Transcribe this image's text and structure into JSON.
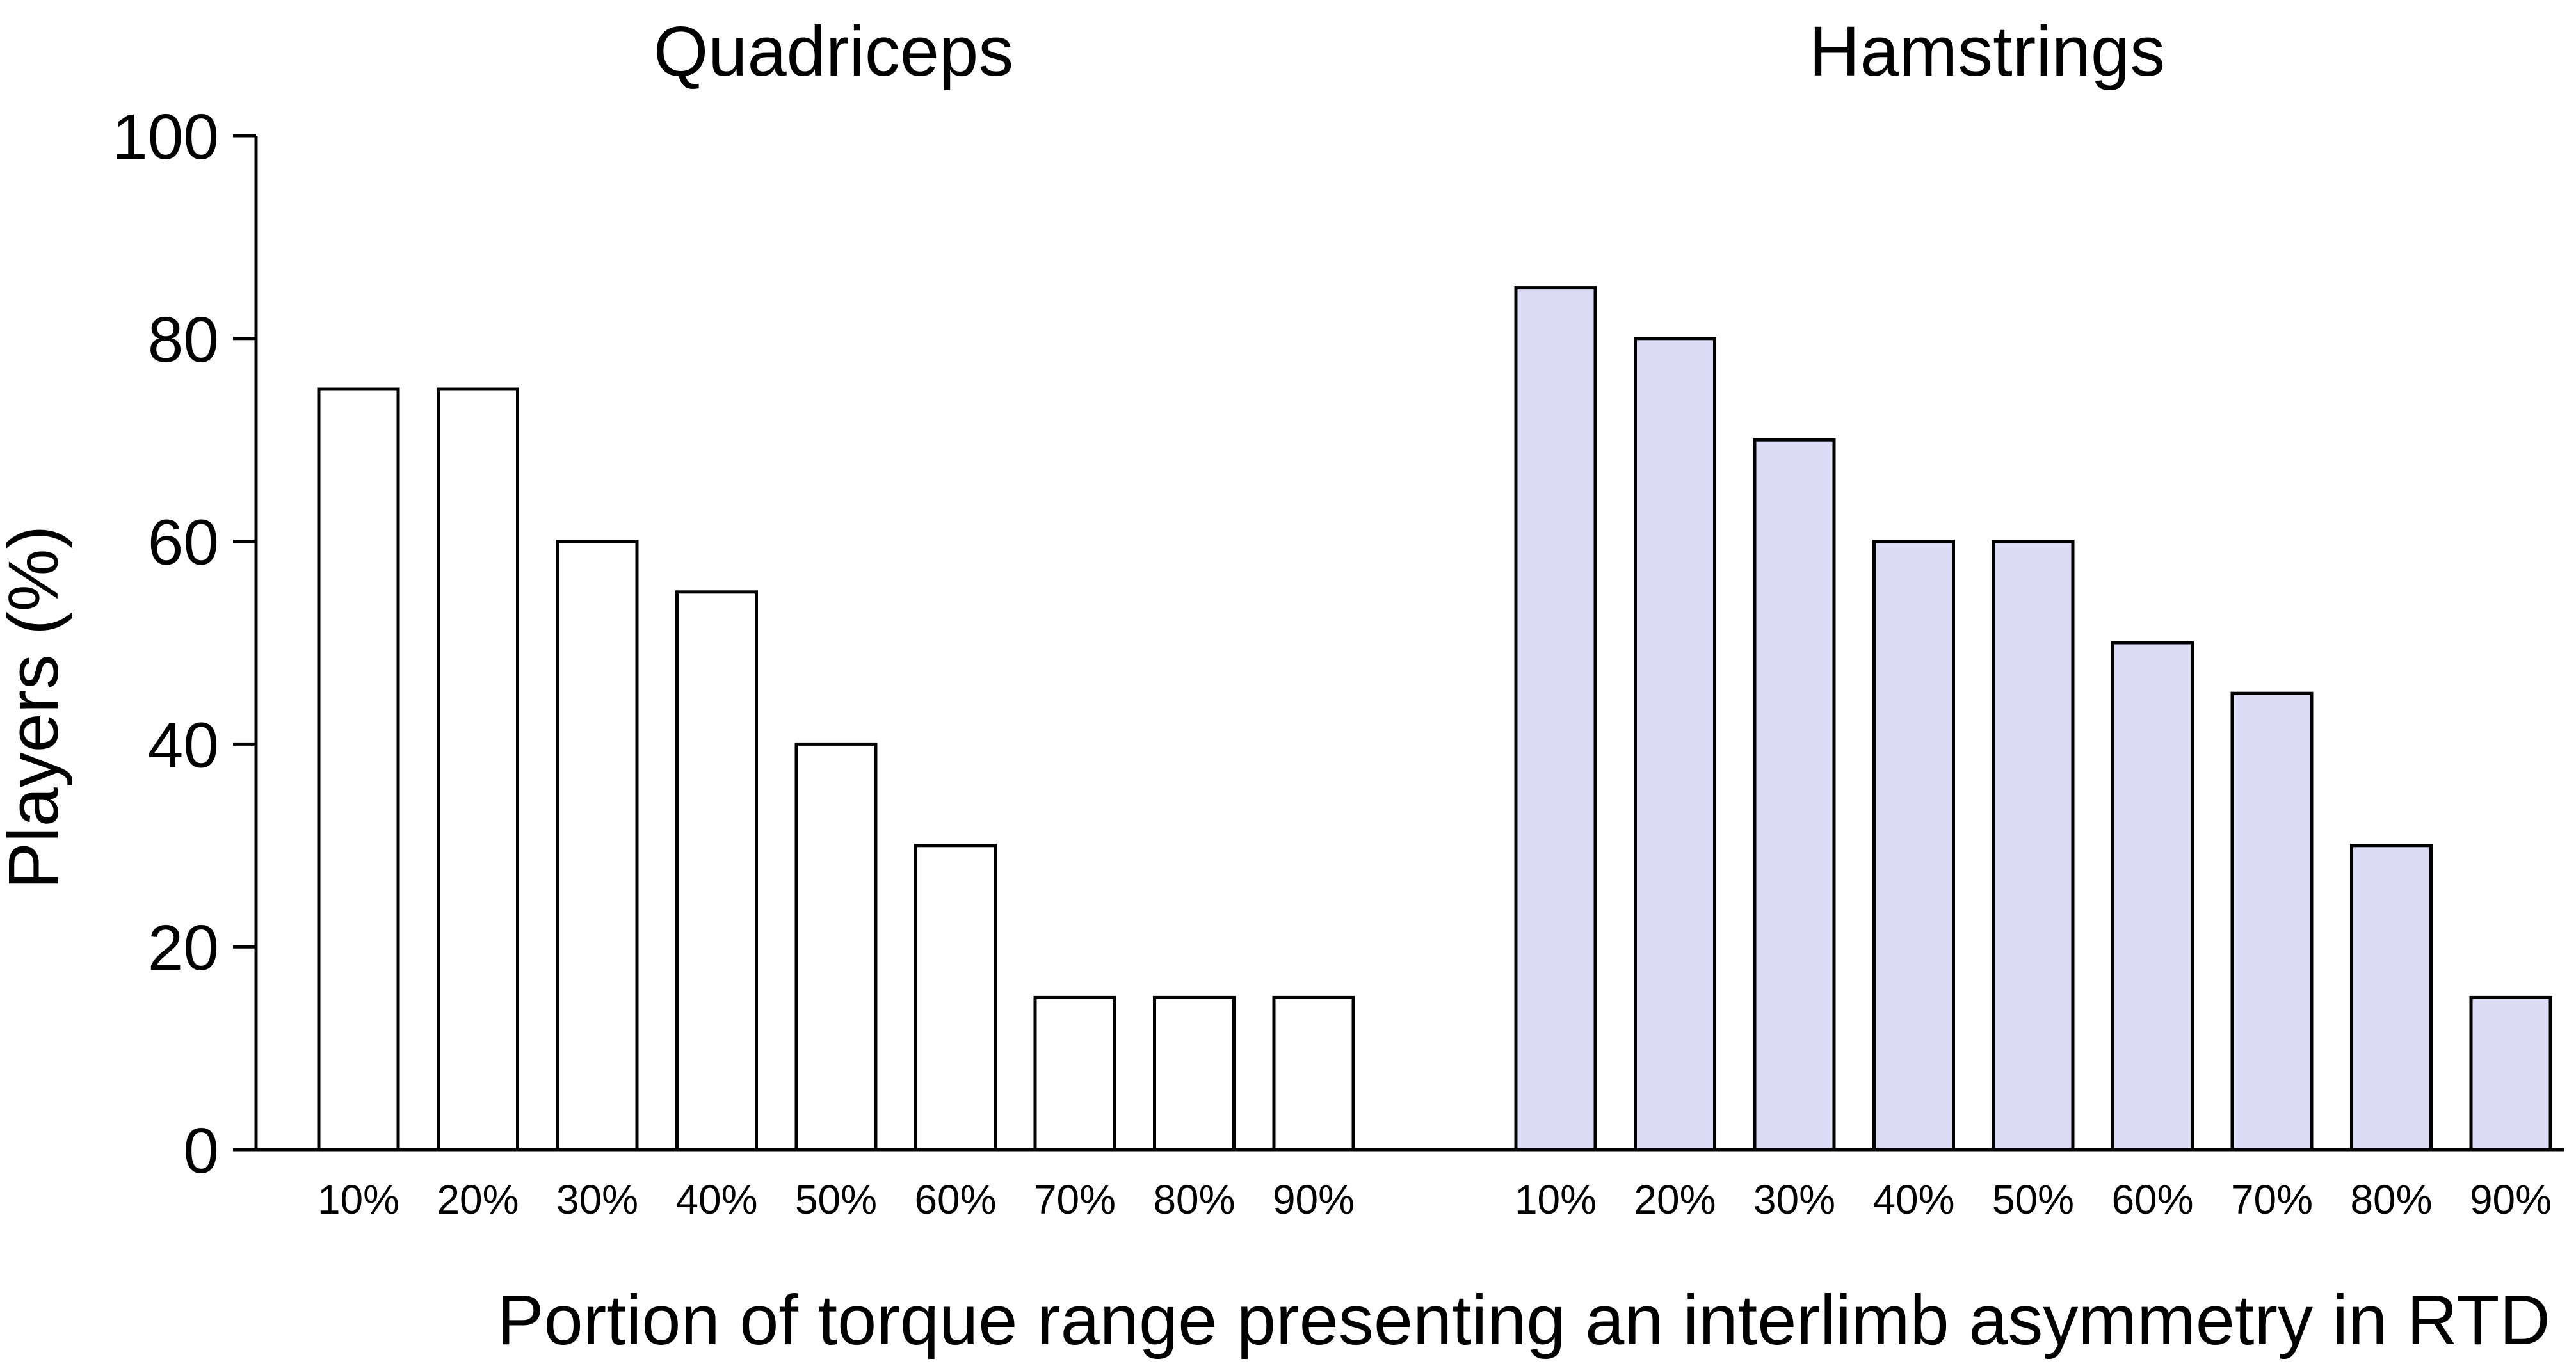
{
  "chart_data": {
    "type": "bar",
    "groups": [
      {
        "title": "Quadriceps",
        "categories": [
          "10%",
          "20%",
          "30%",
          "40%",
          "50%",
          "60%",
          "70%",
          "80%",
          "90%"
        ],
        "values": [
          75,
          75,
          60,
          55,
          40,
          30,
          15,
          15,
          15
        ],
        "color": "#ffffff"
      },
      {
        "title": "Hamstrings",
        "categories": [
          "10%",
          "20%",
          "30%",
          "40%",
          "50%",
          "60%",
          "70%",
          "80%",
          "90%"
        ],
        "values": [
          85,
          80,
          70,
          60,
          60,
          50,
          45,
          30,
          15
        ],
        "color": "#dcdcf7"
      }
    ],
    "ylabel": "Players (%)",
    "xlabel": "Portion of torque range presenting an interlimb asymmetry in RTD",
    "ylim": [
      0,
      100
    ],
    "yticks": [
      0,
      20,
      40,
      60,
      80,
      100
    ],
    "grid": false,
    "legend": "none",
    "bar_edge_color": "#000000"
  }
}
